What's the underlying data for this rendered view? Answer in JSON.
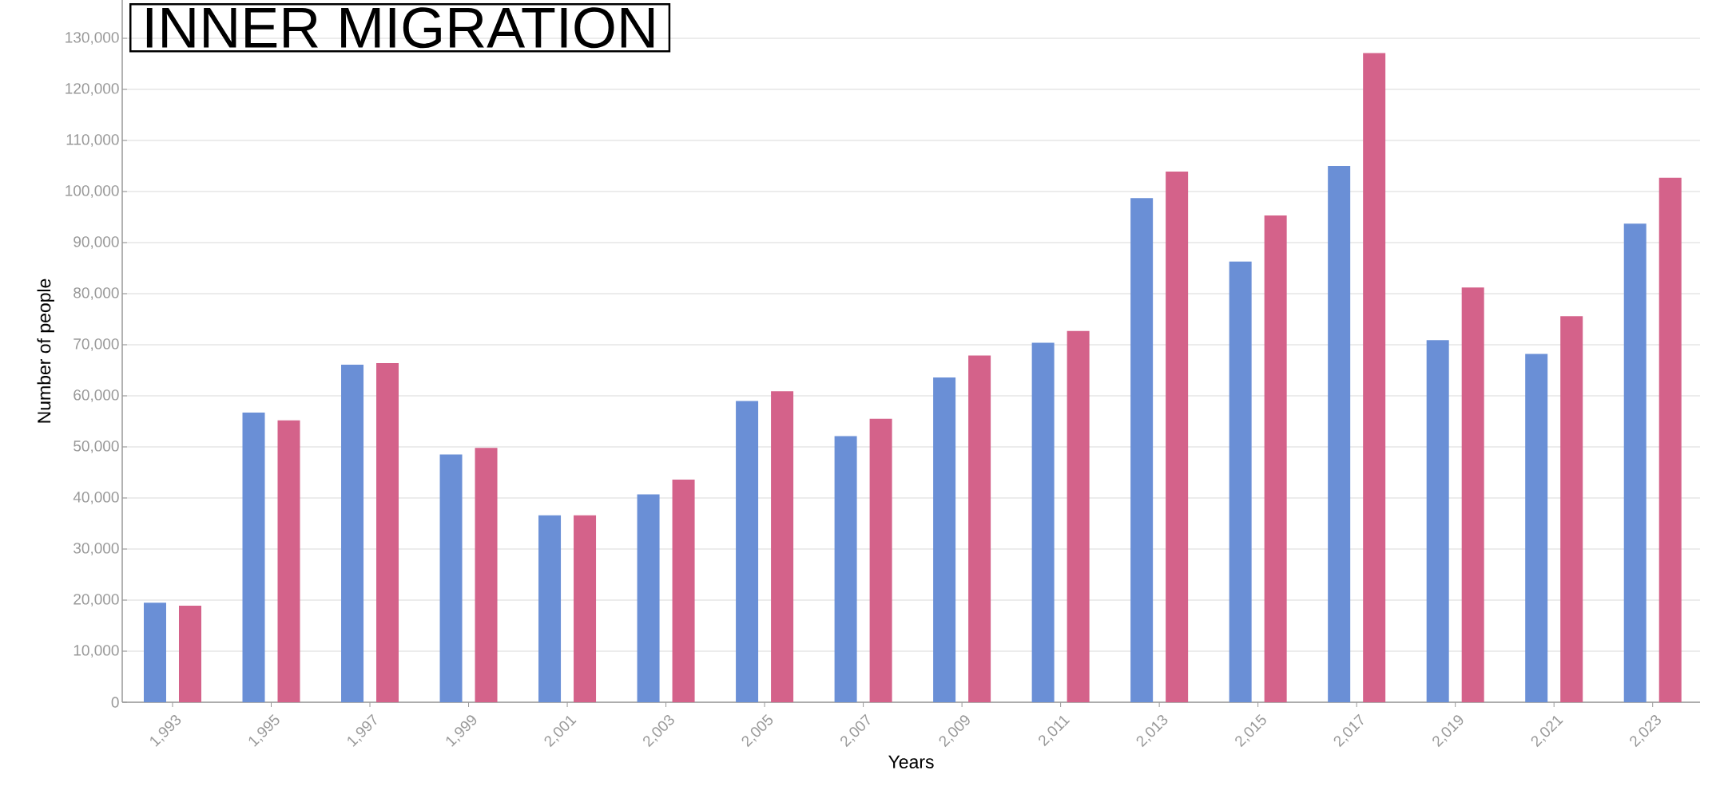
{
  "chart_data": {
    "type": "bar",
    "title": "INNER MIGRATION",
    "xlabel": "Years",
    "ylabel": "Number of people",
    "categories": [
      "1,993",
      "1,995",
      "1,997",
      "1,999",
      "2,001",
      "2,003",
      "2,005",
      "2,007",
      "2,009",
      "2,011",
      "2,013",
      "2,015",
      "2,017",
      "2,019",
      "2,021",
      "2,023"
    ],
    "series": [
      {
        "color": "#6a8fd6",
        "values": [
          19500,
          56700,
          66100,
          48500,
          36600,
          40700,
          59000,
          52100,
          63600,
          70400,
          98700,
          86300,
          105000,
          70900,
          68200,
          93700
        ]
      },
      {
        "color": "#d4628a",
        "values": [
          18900,
          55200,
          66400,
          49800,
          36600,
          43600,
          60900,
          55500,
          67900,
          72700,
          103900,
          95300,
          127100,
          81200,
          75600,
          102700
        ]
      }
    ],
    "ylim": [
      0,
      137500
    ],
    "yticks": [
      {
        "value": 0,
        "label": "0"
      },
      {
        "value": 10000,
        "label": "10,000"
      },
      {
        "value": 20000,
        "label": "20,000"
      },
      {
        "value": 30000,
        "label": "30,000"
      },
      {
        "value": 40000,
        "label": "40,000"
      },
      {
        "value": 50000,
        "label": "50,000"
      },
      {
        "value": 60000,
        "label": "60,000"
      },
      {
        "value": 70000,
        "label": "70,000"
      },
      {
        "value": 80000,
        "label": "80,000"
      },
      {
        "value": 90000,
        "label": "90,000"
      },
      {
        "value": 100000,
        "label": "100,000"
      },
      {
        "value": 110000,
        "label": "110,000"
      },
      {
        "value": 120000,
        "label": "120,000"
      },
      {
        "value": 130000,
        "label": "130,000"
      }
    ],
    "grid": "y"
  }
}
